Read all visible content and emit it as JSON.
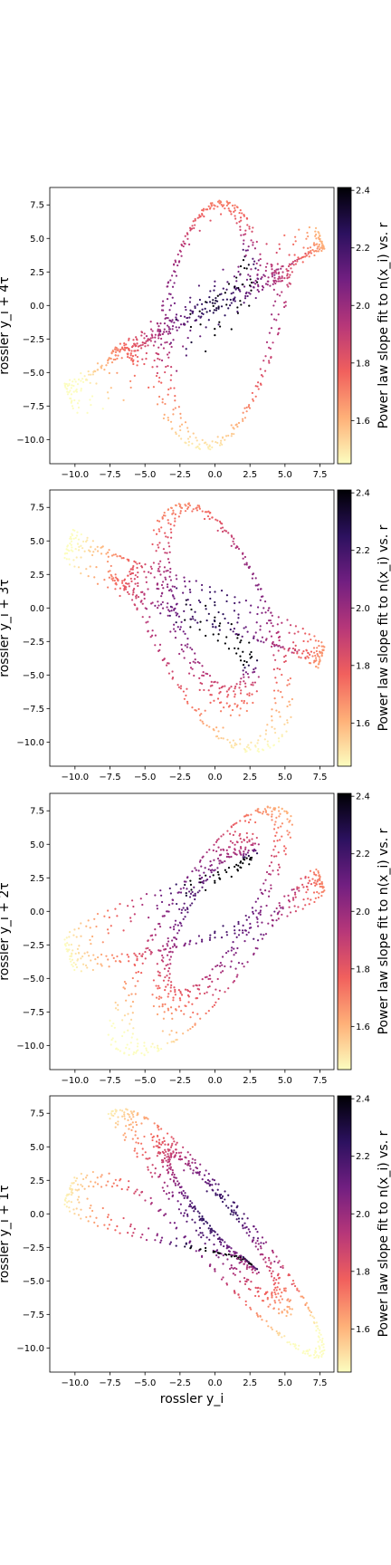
{
  "colors": {
    "colormap": [
      "#fcfdbf",
      "#feb078",
      "#f1605d",
      "#b73779",
      "#721f81",
      "#2c115f",
      "#000004"
    ],
    "axes": "#000000",
    "background": "#ffffff"
  },
  "chart_data": [
    {
      "type": "scatter",
      "ylabel": "rossler y_i + 4τ",
      "xlabel": "",
      "xlim": [
        -11.8,
        8.5
      ],
      "ylim": [
        -11.8,
        8.8
      ],
      "xticks": [
        "−10.0",
        "−7.5",
        "−5.0",
        "−2.5",
        "0.0",
        "2.5",
        "5.0",
        "7.5"
      ],
      "yticks": [
        "−10.0",
        "−7.5",
        "−5.0",
        "−2.5",
        "0.0",
        "2.5",
        "5.0",
        "7.5"
      ],
      "colorbar": {
        "label": "Power law slope fit to n(x_i) vs. r",
        "range": [
          1.45,
          2.41
        ],
        "ticks": [
          "1.6",
          "1.8",
          "2.0",
          "2.2",
          "2.4"
        ]
      },
      "lag": 4
    },
    {
      "type": "scatter",
      "ylabel": "rossler y_i + 3τ",
      "xlabel": "",
      "xlim": [
        -11.8,
        8.5
      ],
      "ylim": [
        -11.8,
        8.8
      ],
      "xticks": [
        "−10.0",
        "−7.5",
        "−5.0",
        "−2.5",
        "0.0",
        "2.5",
        "5.0",
        "7.5"
      ],
      "yticks": [
        "−10.0",
        "−7.5",
        "−5.0",
        "−2.5",
        "0.0",
        "2.5",
        "5.0",
        "7.5"
      ],
      "colorbar": {
        "label": "Power law slope fit to n(x_i) vs. r",
        "range": [
          1.45,
          2.41
        ],
        "ticks": [
          "1.6",
          "1.8",
          "2.0",
          "2.2",
          "2.4"
        ]
      },
      "lag": 3
    },
    {
      "type": "scatter",
      "ylabel": "rossler y_i + 2τ",
      "xlabel": "",
      "xlim": [
        -11.8,
        8.5
      ],
      "ylim": [
        -11.8,
        8.8
      ],
      "xticks": [
        "−10.0",
        "−7.5",
        "−5.0",
        "−2.5",
        "0.0",
        "2.5",
        "5.0",
        "7.5"
      ],
      "yticks": [
        "−10.0",
        "−7.5",
        "−5.0",
        "−2.5",
        "0.0",
        "2.5",
        "5.0",
        "7.5"
      ],
      "colorbar": {
        "label": "Power law slope fit to n(x_i) vs. r",
        "range": [
          1.45,
          2.41
        ],
        "ticks": [
          "1.6",
          "1.8",
          "2.0",
          "2.2",
          "2.4"
        ]
      },
      "lag": 2
    },
    {
      "type": "scatter",
      "ylabel": "rossler y_i + 1τ",
      "xlabel": "rossler y_i",
      "xlim": [
        -11.8,
        8.5
      ],
      "ylim": [
        -11.8,
        8.8
      ],
      "xticks": [
        "−10.0",
        "−7.5",
        "−5.0",
        "−2.5",
        "0.0",
        "2.5",
        "5.0",
        "7.5"
      ],
      "yticks": [
        "−10.0",
        "−7.5",
        "−5.0",
        "−2.5",
        "0.0",
        "2.5",
        "5.0",
        "7.5"
      ],
      "colorbar": {
        "label": "Power law slope fit to n(x_i) vs. r",
        "range": [
          1.45,
          2.41
        ],
        "ticks": [
          "1.6",
          "1.8",
          "2.0",
          "2.2",
          "2.4"
        ]
      },
      "lag": 1
    }
  ]
}
